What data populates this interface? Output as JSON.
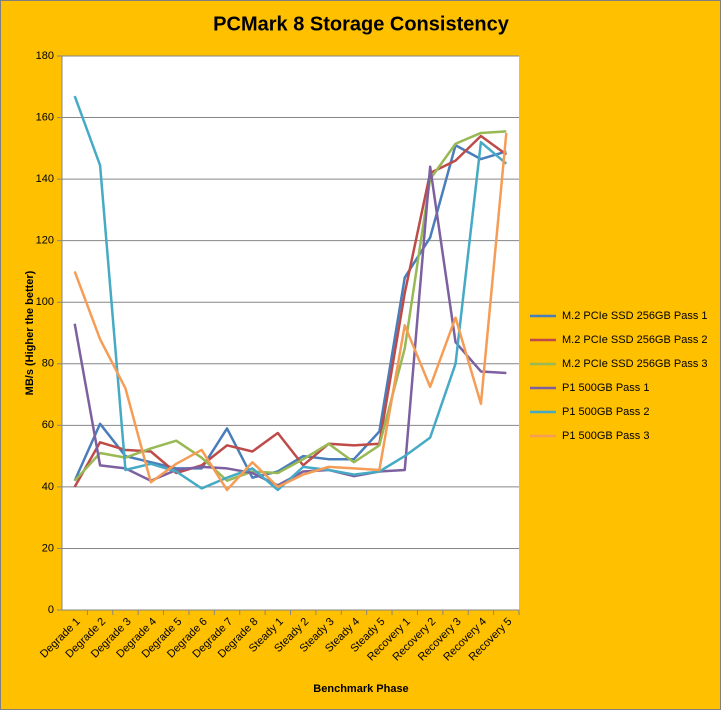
{
  "chart_data": {
    "type": "line",
    "title": "PCMark 8 Storage Consistency",
    "x_label": "Benchmark Phase",
    "y_label": "MB/s (Higher the better)",
    "categories": [
      "Degrade 1",
      "Degrade 2",
      "Degrade 3",
      "Degrade 4",
      "Degrade 5",
      "Degrade 6",
      "Degrade 7",
      "Degrade 8",
      "Steady 1",
      "Steady 2",
      "Steady 3",
      "Steady 4",
      "Steady 5",
      "Recovery 1",
      "Recovery 2",
      "Recovery 3",
      "Recovery 4",
      "Recovery 5"
    ],
    "series": [
      {
        "name": "M.2 PCIe SSD 256GB Pass 1",
        "color": "#4a7ebb",
        "values": [
          42,
          60.5,
          50,
          48,
          46,
          46,
          59,
          43,
          45,
          50,
          49,
          49,
          58,
          108,
          121,
          151,
          146.5,
          149
        ]
      },
      {
        "name": "M.2 PCIe SSD 256GB Pass 2",
        "color": "#be4b48",
        "values": [
          40,
          54.5,
          52,
          51.5,
          44.5,
          47,
          53.5,
          51.5,
          57.5,
          47,
          54,
          53.5,
          54,
          103,
          142,
          146,
          154,
          148
        ]
      },
      {
        "name": "M.2 PCIe SSD 256GB Pass 3",
        "color": "#98b954",
        "values": [
          42,
          51,
          49.5,
          52.5,
          55,
          49.5,
          42,
          45,
          44.5,
          49,
          54,
          48,
          53.5,
          85,
          140,
          151.5,
          155,
          155.5
        ]
      },
      {
        "name": "P1 500GB Pass 1",
        "color": "#7d60a0",
        "values": [
          93,
          47,
          46,
          42,
          45.5,
          46.5,
          46,
          44.5,
          40.5,
          45,
          45.5,
          43.5,
          45,
          45.5,
          144,
          87,
          77.5,
          77
        ]
      },
      {
        "name": "P1 500GB Pass 2",
        "color": "#46aac5",
        "values": [
          167,
          144.5,
          45.5,
          47.5,
          45,
          39.5,
          43,
          46,
          39,
          46.5,
          45.5,
          44,
          45,
          50,
          56,
          80,
          152,
          145
        ]
      },
      {
        "name": "P1 500GB Pass 3",
        "color": "#f59d56",
        "values": [
          110,
          88,
          72,
          41.5,
          47.5,
          52,
          39,
          48,
          40,
          44,
          46.5,
          46,
          45.5,
          92.5,
          72.5,
          95,
          67,
          155
        ]
      }
    ],
    "ylim": [
      0,
      180
    ],
    "yticks": [
      0,
      20,
      40,
      60,
      80,
      100,
      120,
      140,
      160,
      180
    ],
    "grid": true,
    "legend": "right"
  }
}
